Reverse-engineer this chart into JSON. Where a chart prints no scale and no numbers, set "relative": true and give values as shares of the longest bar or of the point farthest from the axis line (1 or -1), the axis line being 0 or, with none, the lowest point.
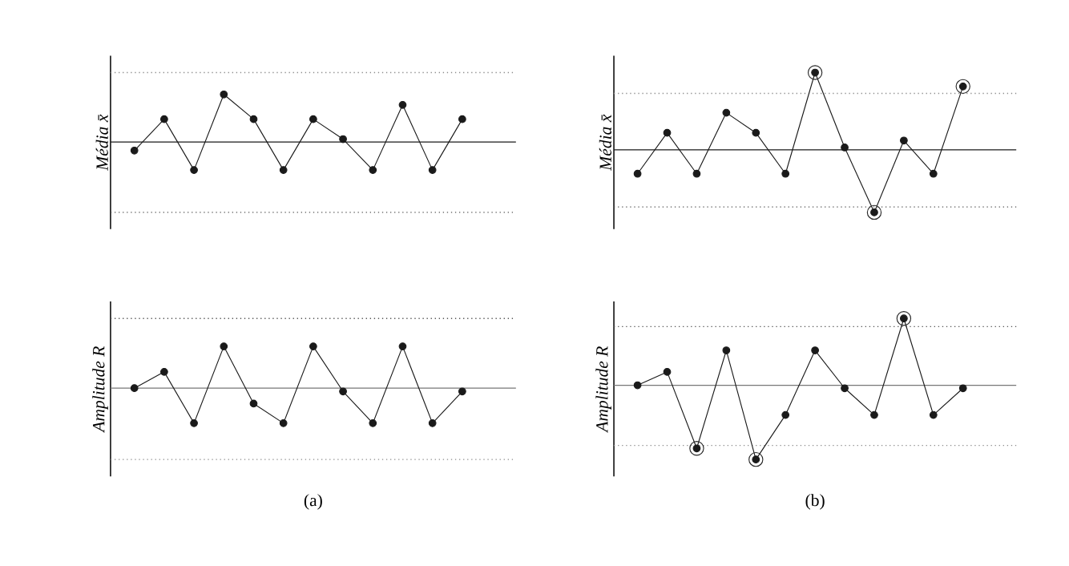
{
  "chart_data": [
    {
      "type": "line",
      "relative": true,
      "ylabel": "Média x̄",
      "marker": "circle",
      "line_style": "solid",
      "categories": [
        null,
        null,
        null,
        null,
        null,
        null,
        null,
        null,
        null,
        null,
        null,
        null
      ],
      "series": [
        {
          "color": "#1a1a1a",
          "values": [
            -0.18,
            0.48,
            -0.59,
            1,
            0.48,
            -0.59,
            0.48,
            0.06,
            -0.59,
            0.78,
            -0.59,
            0.48
          ]
        }
      ],
      "ref_lines": [
        {
          "axis": "y",
          "value": 1.46,
          "color": "#8c8c8c",
          "line_style": "dotted"
        },
        {
          "axis": "y",
          "value": 0,
          "color": "#1a1a1a",
          "line_style": "solid"
        },
        {
          "axis": "y",
          "value": -1.48,
          "color": "#555555",
          "line_style": "dotted"
        }
      ]
    },
    {
      "type": "line",
      "relative": true,
      "ylabel": "Média x̄",
      "marker": "circle",
      "line_style": "solid",
      "categories": [
        null,
        null,
        null,
        null,
        null,
        null,
        null,
        null,
        null,
        null,
        null,
        null
      ],
      "series": [
        {
          "color": "#1a1a1a",
          "values": [
            -0.31,
            0.22,
            -0.31,
            0.48,
            0.22,
            -0.31,
            1,
            0.03,
            -0.81,
            0.12,
            -0.31,
            0.82
          ]
        }
      ],
      "ref_lines": [
        {
          "axis": "y",
          "value": 0.73,
          "color": "#8c8c8c",
          "line_style": "dotted"
        },
        {
          "axis": "y",
          "value": 0,
          "color": "#1a1a1a",
          "line_style": "solid"
        },
        {
          "axis": "y",
          "value": -0.74,
          "color": "#555555",
          "line_style": "dotted"
        }
      ]
    },
    {
      "type": "line",
      "relative": true,
      "ylabel": "Amplitude R",
      "xlabel": "(a)",
      "marker": "circle",
      "line_style": "solid",
      "categories": [
        null,
        null,
        null,
        null,
        null,
        null,
        null,
        null,
        null,
        null,
        null,
        null
      ],
      "series": [
        {
          "color": "#1a1a1a",
          "values": [
            0,
            0.39,
            -0.84,
            1,
            -0.37,
            -0.84,
            1,
            -0.08,
            -0.84,
            1,
            -0.84,
            -0.08
          ]
        }
      ],
      "ref_lines": [
        {
          "axis": "y",
          "value": 1.67,
          "color": "#555555",
          "line_style": "dotted"
        },
        {
          "axis": "y",
          "value": 0,
          "color": "#777777",
          "line_style": "solid"
        },
        {
          "axis": "y",
          "value": -1.71,
          "color": "#8c8c8c",
          "line_style": "dotted"
        }
      ]
    },
    {
      "type": "line",
      "relative": true,
      "ylabel": "Amplitude R",
      "xlabel": "(b)",
      "marker": "circle",
      "line_style": "solid",
      "categories": [
        null,
        null,
        null,
        null,
        null,
        null,
        null,
        null,
        null,
        null,
        null,
        null
      ],
      "series": [
        {
          "color": "#1a1a1a",
          "values": [
            0,
            0.18,
            -0.85,
            0.47,
            -1,
            -0.4,
            0.47,
            -0.04,
            -0.4,
            0.9,
            -0.4,
            -0.04
          ]
        }
      ],
      "ref_lines": [
        {
          "axis": "y",
          "value": 0.79,
          "color": "#555555",
          "line_style": "dotted"
        },
        {
          "axis": "y",
          "value": 0,
          "color": "#777777",
          "line_style": "solid"
        },
        {
          "axis": "y",
          "value": -0.81,
          "color": "#8c8c8c",
          "line_style": "dotted"
        }
      ]
    }
  ]
}
